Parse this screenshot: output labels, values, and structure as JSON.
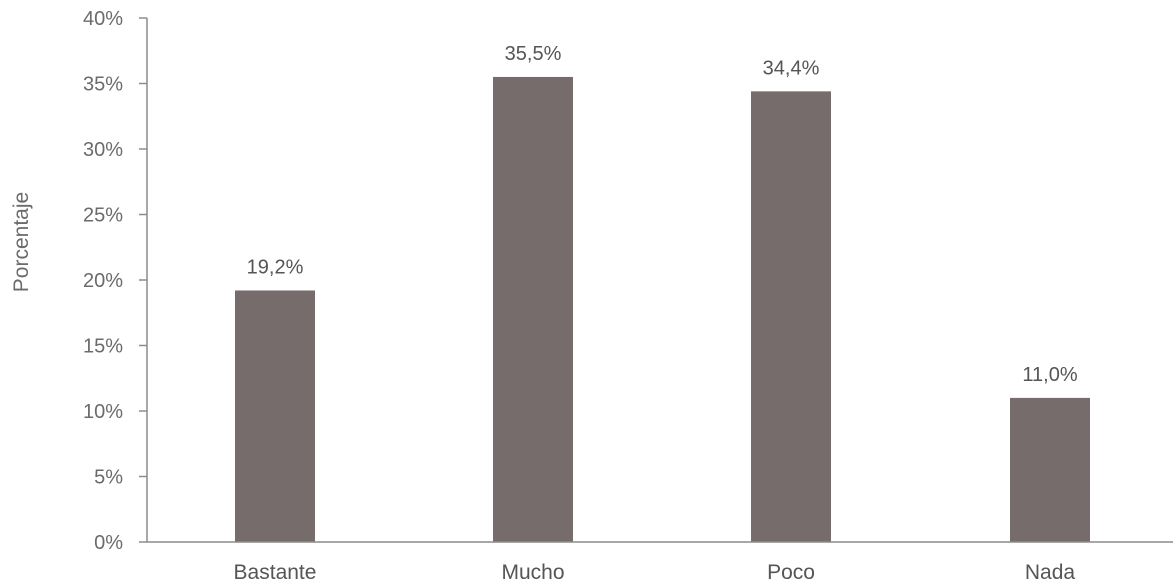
{
  "chart_data": {
    "type": "bar",
    "categories": [
      "Bastante",
      "Mucho",
      "Poco",
      "Nada"
    ],
    "values": [
      19.2,
      35.5,
      34.4,
      11.0
    ],
    "data_labels": [
      "19,2%",
      "35,5%",
      "34,4%",
      "11,0%"
    ],
    "ylabel": "Porcentaje",
    "xlabel": "",
    "ylim": [
      0,
      40
    ],
    "yticks": [
      0,
      5,
      10,
      15,
      20,
      25,
      30,
      35,
      40
    ],
    "ytick_labels": [
      "0%",
      "5%",
      "10%",
      "15%",
      "20%",
      "25%",
      "30%",
      "35%",
      "40%"
    ],
    "grid": false,
    "bar_color": "#766c6c"
  }
}
